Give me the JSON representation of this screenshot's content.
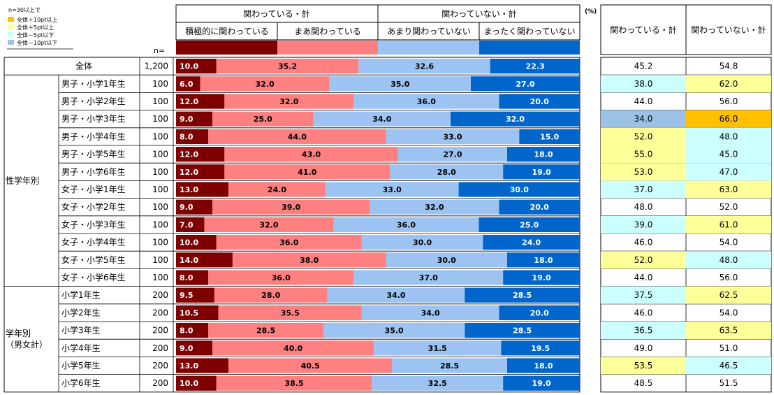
{
  "legend": {
    "note": "n=30以上で",
    "items": [
      {
        "label": "全体＋10pt以上",
        "color": "#FFC000"
      },
      {
        "label": "全体＋5pt以上",
        "color": "#FFFF99"
      },
      {
        "label": "全体－5pt以下",
        "color": "#CCFFFF"
      },
      {
        "label": "全体－10pt以下",
        "color": "#9BC2E6"
      }
    ]
  },
  "header": {
    "n_label": "n=",
    "unit": "(%)",
    "group_involved": "関わっている・計",
    "group_not_involved": "関わっていない・計",
    "right_col1": "関わっている・計",
    "right_col2": "関わっていない・計"
  },
  "colors": {
    "cat1": "#7F0000",
    "cat2": "#FF8080",
    "cat3": "#9DC3F2",
    "cat4": "#0066CC"
  },
  "chart_data": {
    "type": "bar",
    "orientation": "horizontal",
    "stacked": true,
    "xlim": [
      0,
      100
    ],
    "categories_legend": [
      "積極的に関わっている",
      "まあ関わっている",
      "あまり関わっていない",
      "まったく関わっていない"
    ],
    "sections": [
      {
        "label": "",
        "rows": [
          0
        ]
      },
      {
        "label": "性学年別",
        "rows": [
          1,
          2,
          3,
          4,
          5,
          6,
          7,
          8,
          9,
          10,
          11,
          12
        ]
      },
      {
        "label": "学年別\n（男女計）",
        "rows": [
          13,
          14,
          15,
          16,
          17,
          18
        ]
      }
    ],
    "rows": [
      {
        "label": "全体",
        "n": "1,200",
        "values": [
          "10.0",
          "35.2",
          "32.6",
          "22.3"
        ],
        "sum1": "45.2",
        "sum2": "54.8",
        "hl1": "",
        "hl2": ""
      },
      {
        "label": "男子・小学1年生",
        "n": "100",
        "values": [
          "6.0",
          "32.0",
          "35.0",
          "27.0"
        ],
        "sum1": "38.0",
        "sum2": "62.0",
        "hl1": "#CCFFFF",
        "hl2": "#FFFF99"
      },
      {
        "label": "男子・小学2年生",
        "n": "100",
        "values": [
          "12.0",
          "32.0",
          "36.0",
          "20.0"
        ],
        "sum1": "44.0",
        "sum2": "56.0",
        "hl1": "",
        "hl2": ""
      },
      {
        "label": "男子・小学3年生",
        "n": "100",
        "values": [
          "9.0",
          "25.0",
          "34.0",
          "32.0"
        ],
        "sum1": "34.0",
        "sum2": "66.0",
        "hl1": "#9BC2E6",
        "hl2": "#FFC000"
      },
      {
        "label": "男子・小学4年生",
        "n": "100",
        "values": [
          "8.0",
          "44.0",
          "33.0",
          "15.0"
        ],
        "sum1": "52.0",
        "sum2": "48.0",
        "hl1": "#FFFF99",
        "hl2": "#CCFFFF"
      },
      {
        "label": "男子・小学5年生",
        "n": "100",
        "values": [
          "12.0",
          "43.0",
          "27.0",
          "18.0"
        ],
        "sum1": "55.0",
        "sum2": "45.0",
        "hl1": "#FFFF99",
        "hl2": "#CCFFFF"
      },
      {
        "label": "男子・小学6年生",
        "n": "100",
        "values": [
          "12.0",
          "41.0",
          "28.0",
          "19.0"
        ],
        "sum1": "53.0",
        "sum2": "47.0",
        "hl1": "#FFFF99",
        "hl2": "#CCFFFF"
      },
      {
        "label": "女子・小学1年生",
        "n": "100",
        "values": [
          "13.0",
          "24.0",
          "33.0",
          "30.0"
        ],
        "sum1": "37.0",
        "sum2": "63.0",
        "hl1": "#CCFFFF",
        "hl2": "#FFFF99"
      },
      {
        "label": "女子・小学2年生",
        "n": "100",
        "values": [
          "9.0",
          "39.0",
          "32.0",
          "20.0"
        ],
        "sum1": "48.0",
        "sum2": "52.0",
        "hl1": "",
        "hl2": ""
      },
      {
        "label": "女子・小学3年生",
        "n": "100",
        "values": [
          "7.0",
          "32.0",
          "36.0",
          "25.0"
        ],
        "sum1": "39.0",
        "sum2": "61.0",
        "hl1": "#CCFFFF",
        "hl2": "#FFFF99"
      },
      {
        "label": "女子・小学4年生",
        "n": "100",
        "values": [
          "10.0",
          "36.0",
          "30.0",
          "24.0"
        ],
        "sum1": "46.0",
        "sum2": "54.0",
        "hl1": "",
        "hl2": ""
      },
      {
        "label": "女子・小学5年生",
        "n": "100",
        "values": [
          "14.0",
          "38.0",
          "30.0",
          "18.0"
        ],
        "sum1": "52.0",
        "sum2": "48.0",
        "hl1": "#FFFF99",
        "hl2": "#CCFFFF"
      },
      {
        "label": "女子・小学6年生",
        "n": "100",
        "values": [
          "8.0",
          "36.0",
          "37.0",
          "19.0"
        ],
        "sum1": "44.0",
        "sum2": "56.0",
        "hl1": "",
        "hl2": ""
      },
      {
        "label": "小学1年生",
        "n": "200",
        "values": [
          "9.5",
          "28.0",
          "34.0",
          "28.5"
        ],
        "sum1": "37.5",
        "sum2": "62.5",
        "hl1": "#CCFFFF",
        "hl2": "#FFFF99"
      },
      {
        "label": "小学2年生",
        "n": "200",
        "values": [
          "10.5",
          "35.5",
          "34.0",
          "20.0"
        ],
        "sum1": "46.0",
        "sum2": "54.0",
        "hl1": "",
        "hl2": ""
      },
      {
        "label": "小学3年生",
        "n": "200",
        "values": [
          "8.0",
          "28.5",
          "35.0",
          "28.5"
        ],
        "sum1": "36.5",
        "sum2": "63.5",
        "hl1": "#CCFFFF",
        "hl2": "#FFFF99"
      },
      {
        "label": "小学4年生",
        "n": "200",
        "values": [
          "9.0",
          "40.0",
          "31.5",
          "19.5"
        ],
        "sum1": "49.0",
        "sum2": "51.0",
        "hl1": "",
        "hl2": ""
      },
      {
        "label": "小学5年生",
        "n": "200",
        "values": [
          "13.0",
          "40.5",
          "28.5",
          "18.0"
        ],
        "sum1": "53.5",
        "sum2": "46.5",
        "hl1": "#FFFF99",
        "hl2": "#CCFFFF"
      },
      {
        "label": "小学6年生",
        "n": "200",
        "values": [
          "10.0",
          "38.5",
          "32.5",
          "19.0"
        ],
        "sum1": "48.5",
        "sum2": "51.5",
        "hl1": "",
        "hl2": ""
      }
    ]
  }
}
